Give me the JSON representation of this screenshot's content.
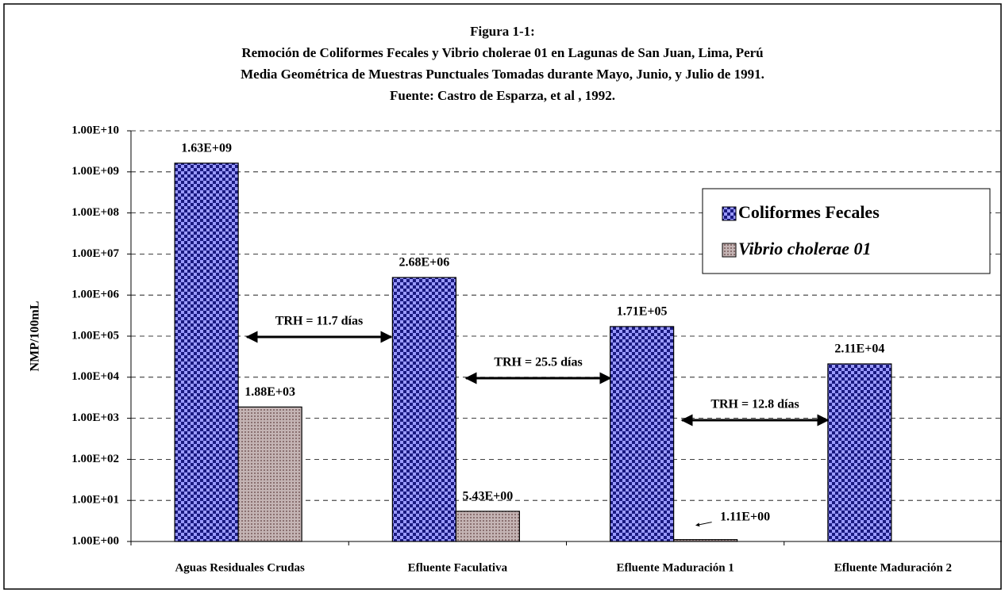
{
  "chart_data": {
    "type": "bar",
    "title": [
      "Figura 1-1:",
      "Remoción de Coliformes Fecales y Vibrio cholerae  01 en Lagunas de San Juan, Lima, Perú",
      "Media Geométrica de Muestras Punctuales Tomadas durante Mayo, Junio,  y Julio de 1991.",
      "Fuente: Castro de Esparza, et al , 1992."
    ],
    "ylabel": "NMP/100mL",
    "categories": [
      "Aguas Residuales Crudas",
      "Efluente Faculativa",
      "Efluente Maduración 1",
      "Efluente Maduración 2"
    ],
    "series": [
      {
        "name": "Coliformes Fecales",
        "color": "#3a3aa8",
        "values": [
          1630000000,
          2680000,
          171000,
          21100
        ],
        "value_labels": [
          "1.63E+09",
          "2.68E+06",
          "1.71E+05",
          "2.11E+04"
        ]
      },
      {
        "name": "Vibrio cholerae 01",
        "color": "#b09a9a",
        "values": [
          1880,
          5.43,
          1.11,
          null
        ],
        "value_labels": [
          "1.88E+03",
          "5.43E+00",
          "1.11E+00",
          null
        ]
      }
    ],
    "log_scale": true,
    "ylim": [
      1,
      10000000000
    ],
    "yticks": [
      {
        "value": 1,
        "label": "1.00E+00"
      },
      {
        "value": 10,
        "label": "1.00E+01"
      },
      {
        "value": 100,
        "label": "1.00E+02"
      },
      {
        "value": 1000,
        "label": "1.00E+03"
      },
      {
        "value": 10000,
        "label": "1.00E+04"
      },
      {
        "value": 100000,
        "label": "1.00E+05"
      },
      {
        "value": 1000000,
        "label": "1.00E+06"
      },
      {
        "value": 10000000,
        "label": "1.00E+07"
      },
      {
        "value": 100000000,
        "label": "1.00E+08"
      },
      {
        "value": 1000000000,
        "label": "1.00E+09"
      },
      {
        "value": 10000000000,
        "label": "1.00E+10"
      }
    ],
    "grid": true,
    "annotations": [
      "TRH = 11.7 días",
      "TRH = 25.5 días",
      "TRH = 12.8 días"
    ]
  }
}
